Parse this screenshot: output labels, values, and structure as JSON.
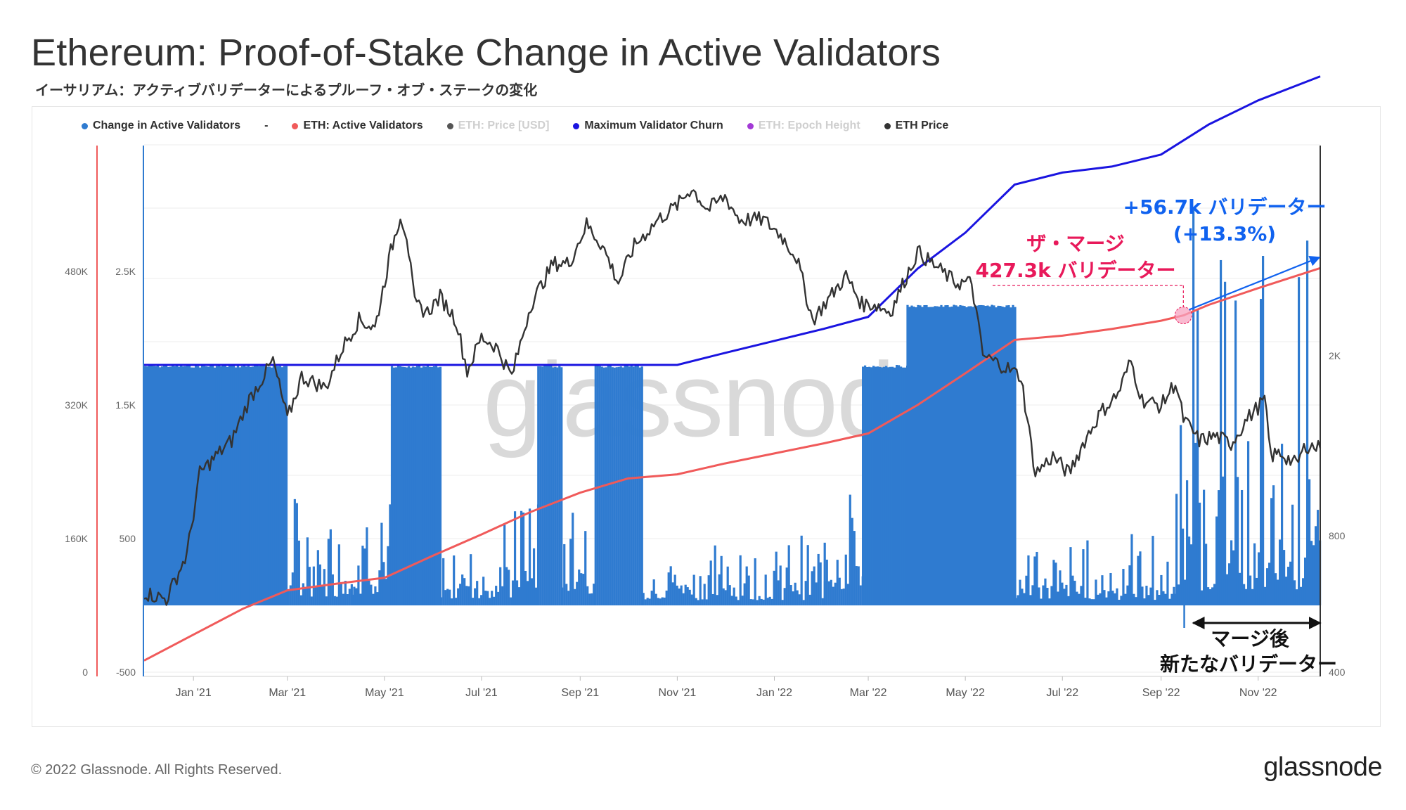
{
  "header": {
    "title": "Ethereum: Proof-of-Stake Change in Active Validators",
    "subtitle": "イーサリアム：アクティブバリデーターによるプルーフ・オブ・ステークの変化"
  },
  "legend": [
    {
      "label": "Change in Active Validators",
      "color": "#2f7bd0",
      "dim": false
    },
    {
      "label": "-",
      "color": "",
      "dim": false
    },
    {
      "label": "ETH: Active Validators",
      "color": "#f05a5a",
      "dim": false
    },
    {
      "label": "ETH: Price [USD]",
      "color": "#555555",
      "dim": true
    },
    {
      "label": "Maximum Validator Churn",
      "color": "#1a14e0",
      "dim": false
    },
    {
      "label": "ETH: Epoch Height",
      "color": "#a33ad6",
      "dim": true
    },
    {
      "label": "ETH Price",
      "color": "#333333",
      "dim": false
    }
  ],
  "footer": {
    "copyright": "© 2022 Glassnode. All Rights Reserved.",
    "logo": "glassnode"
  },
  "chart_data": {
    "type": "line",
    "watermark": "glassnode",
    "x_ticks": [
      "Jan '21",
      "Mar '21",
      "May '21",
      "Jul '21",
      "Sep '21",
      "Nov '21",
      "Jan '22",
      "Mar '22",
      "May '22",
      "Jul '22",
      "Sep '22",
      "Nov '22"
    ],
    "x_range": [
      "2020-12-01",
      "2022-12-10"
    ],
    "axes": {
      "active_validators": {
        "ticks": [
          "0",
          "160K",
          "320K",
          "480K"
        ],
        "range": [
          0,
          560000
        ],
        "color": "#f05a5a"
      },
      "change_in_validators": {
        "ticks": [
          "-500",
          "500",
          "1.5K",
          "2.5K"
        ],
        "range": [
          -500,
          3500
        ],
        "color": "#2f7bd0"
      },
      "eth_price": {
        "ticks": [
          "400",
          "800",
          "2K"
        ],
        "scale": "log",
        "range": [
          400,
          5200
        ],
        "color": "#333333"
      }
    },
    "series": [
      {
        "name": "ETH: Active Validators",
        "color": "#f05a5a",
        "points": [
          [
            "2020-12-01",
            14000
          ],
          [
            "2021-01-01",
            45000
          ],
          [
            "2021-02-01",
            76000
          ],
          [
            "2021-03-01",
            98000
          ],
          [
            "2021-04-01",
            106000
          ],
          [
            "2021-05-01",
            113000
          ],
          [
            "2021-06-01",
            140000
          ],
          [
            "2021-07-01",
            165000
          ],
          [
            "2021-08-01",
            192000
          ],
          [
            "2021-09-01",
            215000
          ],
          [
            "2021-10-01",
            232000
          ],
          [
            "2021-11-01",
            237000
          ],
          [
            "2021-12-01",
            250000
          ],
          [
            "2022-01-01",
            262000
          ],
          [
            "2022-02-01",
            274000
          ],
          [
            "2022-03-01",
            286000
          ],
          [
            "2022-04-01",
            320000
          ],
          [
            "2022-05-01",
            358000
          ],
          [
            "2022-06-01",
            398000
          ],
          [
            "2022-07-01",
            403000
          ],
          [
            "2022-08-01",
            411000
          ],
          [
            "2022-09-01",
            421000
          ],
          [
            "2022-09-15",
            427300
          ],
          [
            "2022-10-01",
            440000
          ],
          [
            "2022-11-01",
            460000
          ],
          [
            "2022-12-10",
            484000
          ]
        ]
      },
      {
        "name": "Maximum Validator Churn",
        "color": "#1a14e0",
        "points": [
          [
            "2020-12-01",
            4
          ],
          [
            "2021-01-01",
            4
          ],
          [
            "2021-04-01",
            4
          ],
          [
            "2021-07-01",
            4
          ],
          [
            "2021-10-01",
            4
          ],
          [
            "2021-11-01",
            4
          ],
          [
            "2021-12-01",
            4.2
          ],
          [
            "2022-01-01",
            4.4
          ],
          [
            "2022-02-01",
            4.6
          ],
          [
            "2022-03-01",
            4.8
          ],
          [
            "2022-04-01",
            5.6
          ],
          [
            "2022-05-01",
            6.2
          ],
          [
            "2022-06-01",
            7
          ],
          [
            "2022-07-01",
            7.2
          ],
          [
            "2022-08-01",
            7.3
          ],
          [
            "2022-09-01",
            7.5
          ],
          [
            "2022-10-01",
            8
          ],
          [
            "2022-11-01",
            8.4
          ],
          [
            "2022-12-10",
            8.8
          ]
        ]
      },
      {
        "name": "ETH Price",
        "color": "#333333",
        "points": [
          [
            "2020-12-01",
            600
          ],
          [
            "2020-12-15",
            580
          ],
          [
            "2020-12-28",
            730
          ],
          [
            "2021-01-05",
            1100
          ],
          [
            "2021-01-15",
            1200
          ],
          [
            "2021-01-25",
            1300
          ],
          [
            "2021-02-05",
            1600
          ],
          [
            "2021-02-20",
            1950
          ],
          [
            "2021-03-01",
            1450
          ],
          [
            "2021-03-10",
            1800
          ],
          [
            "2021-03-25",
            1700
          ],
          [
            "2021-04-05",
            2100
          ],
          [
            "2021-04-15",
            2400
          ],
          [
            "2021-04-25",
            2300
          ],
          [
            "2021-05-05",
            3400
          ],
          [
            "2021-05-11",
            4100
          ],
          [
            "2021-05-15",
            3700
          ],
          [
            "2021-05-20",
            2600
          ],
          [
            "2021-05-28",
            2500
          ],
          [
            "2021-06-05",
            2700
          ],
          [
            "2021-06-15",
            2400
          ],
          [
            "2021-06-22",
            1850
          ],
          [
            "2021-07-01",
            2200
          ],
          [
            "2021-07-10",
            2100
          ],
          [
            "2021-07-20",
            1800
          ],
          [
            "2021-08-01",
            2600
          ],
          [
            "2021-08-15",
            3200
          ],
          [
            "2021-08-25",
            3200
          ],
          [
            "2021-09-05",
            3900
          ],
          [
            "2021-09-15",
            3500
          ],
          [
            "2021-09-25",
            2900
          ],
          [
            "2021-10-05",
            3500
          ],
          [
            "2021-10-20",
            4000
          ],
          [
            "2021-11-01",
            4300
          ],
          [
            "2021-11-10",
            4700
          ],
          [
            "2021-11-20",
            4200
          ],
          [
            "2021-12-01",
            4500
          ],
          [
            "2021-12-10",
            4000
          ],
          [
            "2021-12-25",
            4000
          ],
          [
            "2022-01-05",
            3700
          ],
          [
            "2022-01-15",
            3300
          ],
          [
            "2022-01-25",
            2400
          ],
          [
            "2022-02-05",
            2700
          ],
          [
            "2022-02-15",
            3000
          ],
          [
            "2022-02-25",
            2600
          ],
          [
            "2022-03-05",
            2600
          ],
          [
            "2022-03-15",
            2500
          ],
          [
            "2022-03-25",
            3000
          ],
          [
            "2022-04-01",
            3400
          ],
          [
            "2022-04-10",
            3200
          ],
          [
            "2022-04-25",
            2900
          ],
          [
            "2022-05-05",
            2900
          ],
          [
            "2022-05-12",
            2000
          ],
          [
            "2022-05-25",
            1900
          ],
          [
            "2022-06-05",
            1800
          ],
          [
            "2022-06-14",
            1100
          ],
          [
            "2022-06-25",
            1200
          ],
          [
            "2022-07-05",
            1100
          ],
          [
            "2022-07-15",
            1300
          ],
          [
            "2022-07-25",
            1500
          ],
          [
            "2022-08-05",
            1650
          ],
          [
            "2022-08-13",
            1950
          ],
          [
            "2022-08-20",
            1600
          ],
          [
            "2022-09-01",
            1550
          ],
          [
            "2022-09-10",
            1750
          ],
          [
            "2022-09-15",
            1450
          ],
          [
            "2022-09-25",
            1300
          ],
          [
            "2022-10-05",
            1330
          ],
          [
            "2022-10-15",
            1280
          ],
          [
            "2022-10-25",
            1450
          ],
          [
            "2022-11-05",
            1600
          ],
          [
            "2022-11-09",
            1200
          ],
          [
            "2022-11-15",
            1220
          ],
          [
            "2022-11-25",
            1150
          ],
          [
            "2022-12-01",
            1270
          ],
          [
            "2022-12-10",
            1250
          ]
        ]
      },
      {
        "name": "Change in Active Validators",
        "color": "#2f7bd0",
        "segments": [
          [
            "2020-12-01",
            "2021-01-15",
            1800
          ],
          [
            "2021-01-15",
            "2021-03-01",
            1800
          ],
          [
            "2021-03-01",
            "2021-04-10",
            800
          ],
          [
            "2021-04-10",
            "2021-05-05",
            1000
          ],
          [
            "2021-05-05",
            "2021-06-05",
            1800
          ],
          [
            "2021-06-05",
            "2021-07-20",
            600
          ],
          [
            "2021-07-20",
            "2021-08-05",
            1000
          ],
          [
            "2021-08-05",
            "2021-08-20",
            1800
          ],
          [
            "2021-08-20",
            "2021-09-10",
            1100
          ],
          [
            "2021-09-10",
            "2021-10-10",
            1800
          ],
          [
            "2021-10-10",
            "2022-02-01",
            500
          ],
          [
            "2022-02-01",
            "2022-02-25",
            1300
          ],
          [
            "2022-02-25",
            "2022-03-25",
            1800
          ],
          [
            "2022-03-25",
            "2022-06-01",
            2250
          ],
          [
            "2022-06-01",
            "2022-09-10",
            500
          ],
          [
            "2022-09-10",
            "2022-12-10",
            1400
          ]
        ]
      }
    ],
    "annotations": [
      {
        "name": "merge-label",
        "text": "ザ・マージ",
        "text2": "427.3k バリデーター",
        "color": "#e8195a",
        "x": "2022-09-15",
        "y": 427300
      },
      {
        "name": "growth-label",
        "text": "+56.7k バリデーター",
        "text2": "(+13.3%)",
        "color": "#1062ef",
        "x": "2022-12-10",
        "y": 484000
      },
      {
        "name": "after-merge-label",
        "text": "マージ後",
        "text2": "新たなバリデーター",
        "color": "#111111",
        "x_start": "2022-09-15",
        "x_end": "2022-12-10"
      }
    ]
  }
}
